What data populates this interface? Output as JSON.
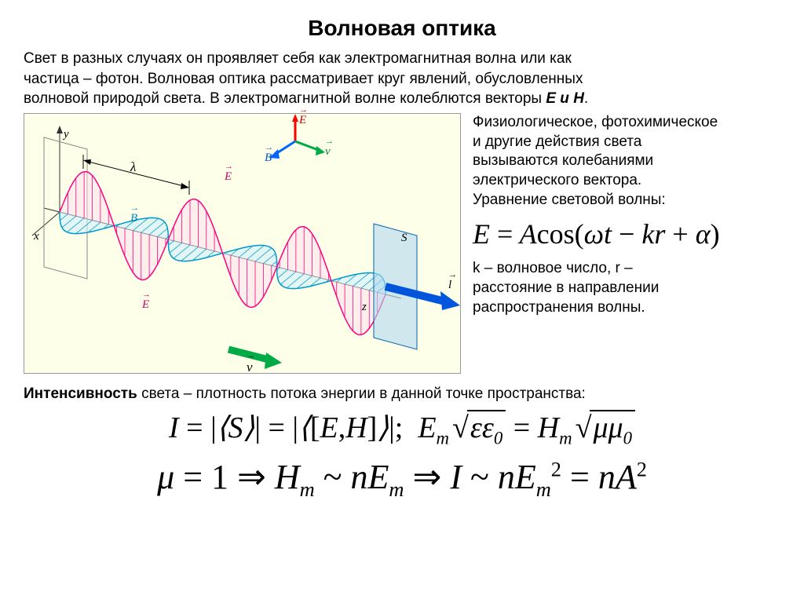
{
  "title": "Волновая оптика",
  "intro_lines": [
    "Свет в разных случаях он проявляет себя как электромагнитная волна или как",
    "частица – фотон. Волновая оптика рассматривает круг явлений, обусловленных",
    "волновой природой света. В электромагнитной волне колеблются векторы"
  ],
  "intro_vectors": "E и H",
  "side": {
    "p1_lines": [
      "Физиологическое, фотохимическое",
      "и другие действия света",
      "вызываются колебаниями",
      "электрического вектора.",
      "Уравнение световой волны:"
    ],
    "formula": "E = A cos(ωt − kr + α)",
    "p2_lines": [
      "k – волновое число, r –",
      "расстояние в направлении",
      "распространения волны."
    ]
  },
  "intensity_label_bold": "Интенсивность",
  "intensity_label_rest": " света – плотность потока энергии в данной точке пространства:",
  "formula1_display": "I = |⟨S⟩| = |⟨[E,H]⟩|; Em√(εε0) = Hm√(μμ0)",
  "formula2_display": "μ = 1 ⇒ Hm ~ nEm ⇒ I ~ nEm² = nA²",
  "diagram": {
    "type": "3d-wave-visualization",
    "background_color": "#feffe8",
    "e_wave": {
      "color": "#ff0080",
      "fill": "#ffe0f0",
      "amplitude": 60,
      "periods": 3,
      "axis": "vertical"
    },
    "b_wave": {
      "color": "#0099cc",
      "fill": "#d0f0ff",
      "amplitude": 40,
      "periods": 3,
      "axis": "horizontal"
    },
    "propagation_arrow": {
      "color": "#0066dd",
      "label": "l",
      "endpoint_plane_color": "#b0d8f0"
    },
    "triad": {
      "E": {
        "color": "#ff0000",
        "label": "E"
      },
      "B": {
        "color": "#0066ff",
        "label": "B"
      },
      "v": {
        "color": "#00aa44",
        "label": "v"
      }
    },
    "lambda_marker": {
      "label": "λ",
      "arrow_color": "#000000"
    },
    "axis_labels": {
      "y": "y",
      "x": "x",
      "z": "z"
    },
    "bottom_arrow": {
      "color": "#00aa44",
      "label": "v"
    },
    "font_size_labels": 15
  },
  "colors": {
    "text": "#000000",
    "bg": "#ffffff",
    "diagram_bg": "#feffe8"
  }
}
